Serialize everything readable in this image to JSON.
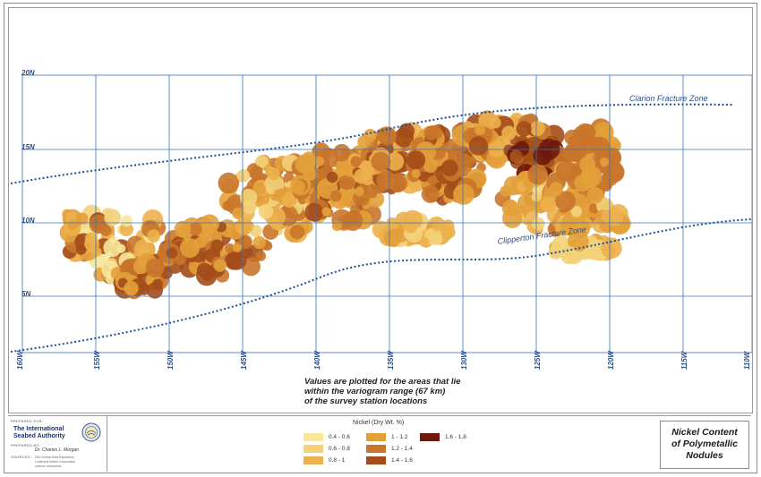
{
  "map": {
    "latitude_labels": [
      "20N",
      "15N",
      "10N",
      "5N"
    ],
    "longitude_labels": [
      "160W",
      "155W",
      "150W",
      "145W",
      "140W",
      "135W",
      "130W",
      "125W",
      "120W",
      "115W",
      "110W"
    ],
    "clarion_label": "Clarion Fracture Zone",
    "clipperton_label": "Clipperton Fracture Zone",
    "grid_color": "#3b73b4",
    "fracture_zone_color": "#1f4f96"
  },
  "note": {
    "line1": "Values are plotted for the areas that lie",
    "line2": "within the variogram range (67 km)",
    "line3": "of the survey station locations"
  },
  "info": {
    "prepared_for_label": "PREPARED FOR:",
    "org_line1": "The International",
    "org_line2": "Seabed Authority",
    "prepared_by_label": "PREPARED BY:",
    "preparer": "Dr. Charles L. Morgan",
    "sources_label": "SOURCES:",
    "source_lines": [
      "ISA Central Data Repository",
      "Lockheed Martin Corporation",
      "various contractors"
    ]
  },
  "legend": {
    "title": "Nickel (Dry Wt. %)",
    "items": [
      {
        "label": "0.4 - 0.6",
        "color": "#f6e79a"
      },
      {
        "label": "0.6 - 0.8",
        "color": "#f3d27a"
      },
      {
        "label": "0.8 - 1",
        "color": "#ecb04c"
      },
      {
        "label": "1 - 1.2",
        "color": "#e3a03a"
      },
      {
        "label": "1.2 - 1.4",
        "color": "#c9762b"
      },
      {
        "label": "1.4 - 1.6",
        "color": "#a34d1a"
      },
      {
        "label": "1.6 - 1.8",
        "color": "#6d1a0c"
      }
    ]
  },
  "title": {
    "line1": "Nickel Content",
    "line2": "of Polymetallic",
    "line3": "Nodules"
  }
}
